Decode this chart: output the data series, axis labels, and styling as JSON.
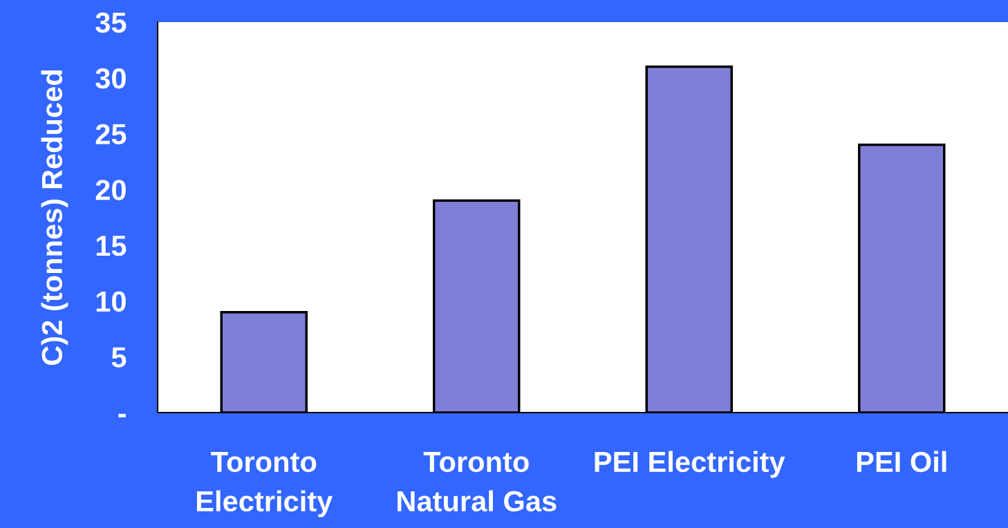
{
  "chart_data": {
    "type": "bar",
    "ylabel": "C)2 (tonnes) Reduced",
    "categories": [
      "Toronto\nElectricity",
      "Toronto\nNatural Gas",
      "PEI Electricity",
      "PEI Oil"
    ],
    "values": [
      9,
      19,
      31,
      24
    ],
    "color": "#7f7fd8",
    "ylim": [
      0,
      35
    ],
    "yticks": [
      {
        "value": 0,
        "label": "-"
      },
      5,
      10,
      15,
      20,
      25,
      30,
      35
    ],
    "grid": false
  }
}
